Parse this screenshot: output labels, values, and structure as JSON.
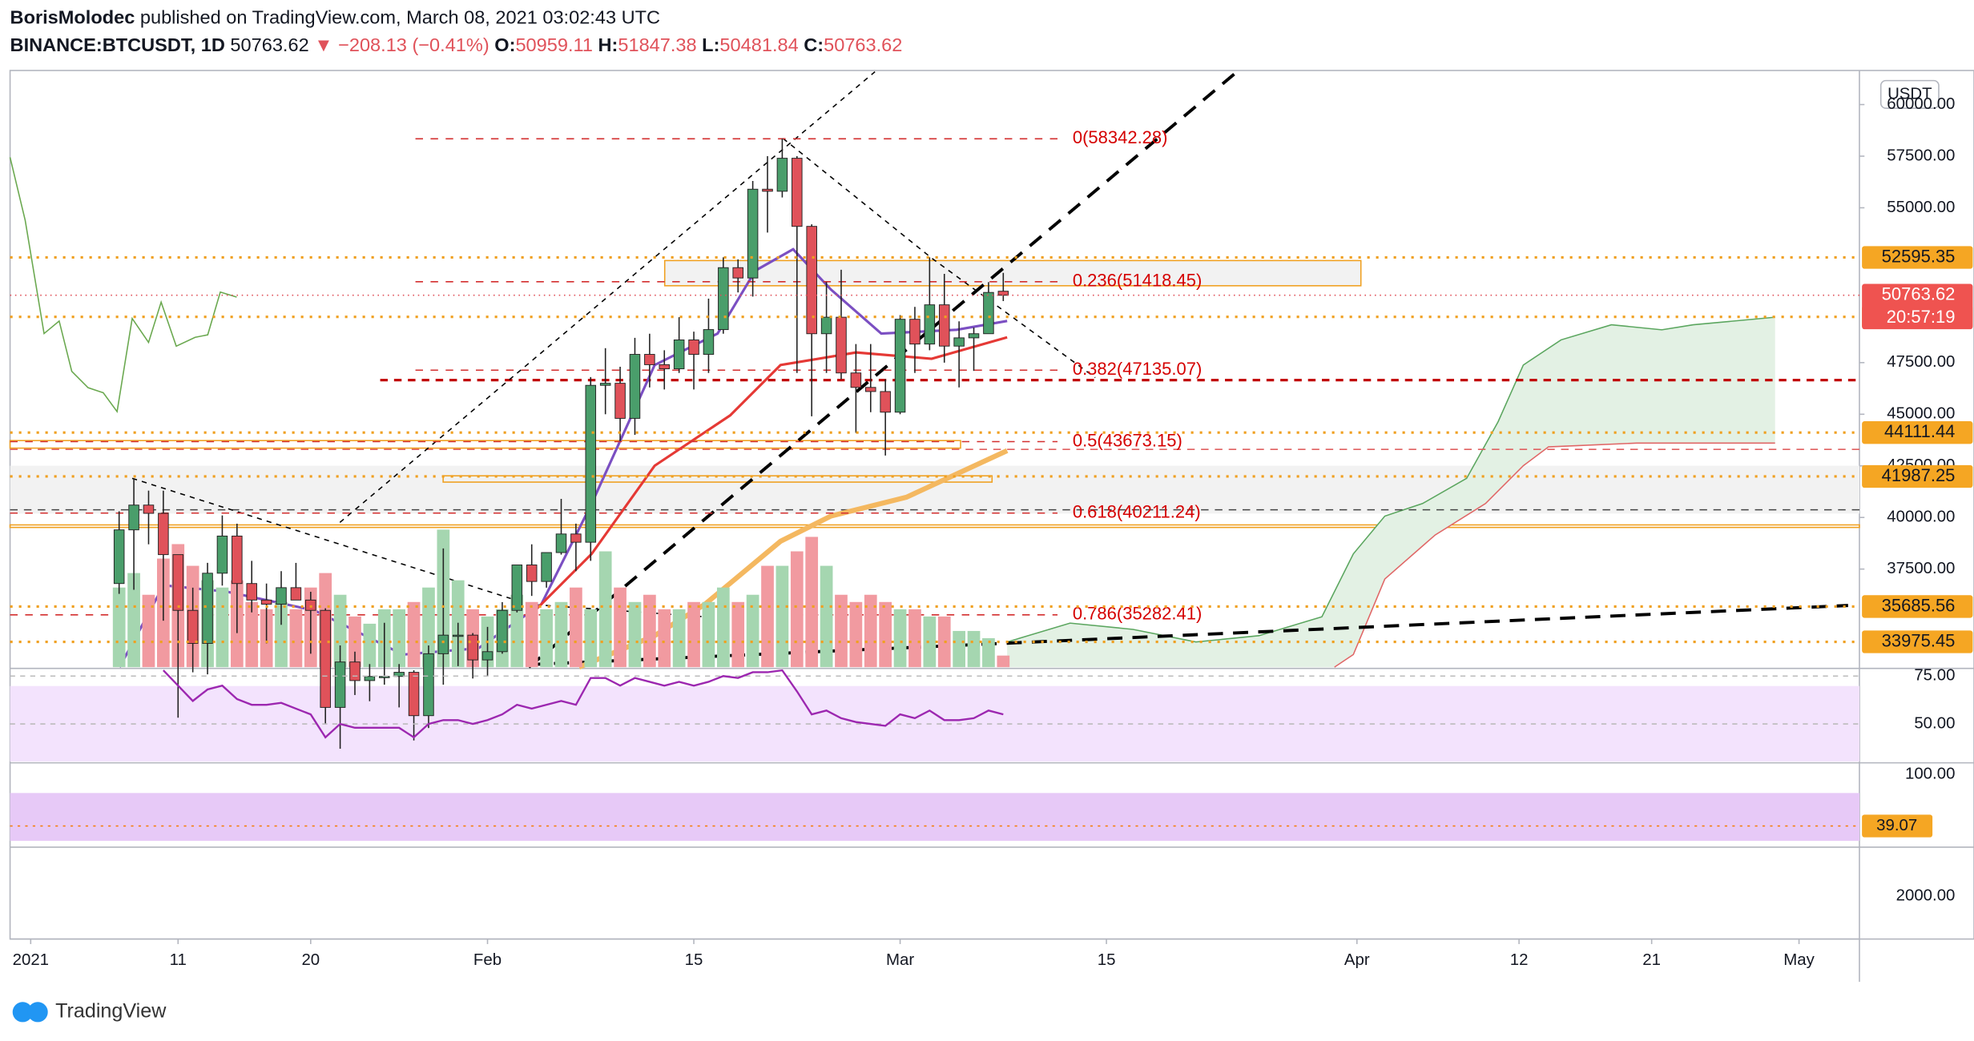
{
  "header": {
    "author": "BorisMolodec",
    "published": "published on TradingView.com, March 08, 2021 03:02:43 UTC",
    "symbol": "BINANCE:BTCUSDT, 1D",
    "last": "50763.62",
    "change": "▼ −208.13 (−0.41%)",
    "ohlc": [
      {
        "label": "O:",
        "value": "50959.11"
      },
      {
        "label": "H:",
        "value": "51847.38"
      },
      {
        "label": "L:",
        "value": "50481.84"
      },
      {
        "label": "C:",
        "value": "50763.62"
      }
    ]
  },
  "currency": "USDT",
  "countdown": "20:57:19",
  "footer": "TradingView",
  "chart_data": {
    "type": "candlestick",
    "up_color": "#4a9e6b",
    "down_color": "#e0525a",
    "xlim": [
      -0.4,
      125.1
    ],
    "xticks": [
      {
        "value": 1,
        "label": "2021"
      },
      {
        "value": 11,
        "label": "11"
      },
      {
        "value": 20,
        "label": "20"
      },
      {
        "value": 32,
        "label": "Feb"
      },
      {
        "value": 46,
        "label": "15"
      },
      {
        "value": 60,
        "label": "Mar"
      },
      {
        "value": 74,
        "label": "15"
      },
      {
        "value": 91,
        "label": "Apr"
      },
      {
        "value": 102,
        "label": "12"
      },
      {
        "value": 111,
        "label": "21"
      },
      {
        "value": 121,
        "label": "May"
      }
    ],
    "ylim": [
      32750,
      61650
    ],
    "yticks": [
      {
        "value": 60000,
        "label": "60000.00"
      },
      {
        "value": 57500,
        "label": "57500.00"
      },
      {
        "value": 55000,
        "label": "55000.00"
      },
      {
        "value": 47500,
        "label": "47500.00"
      },
      {
        "value": 45000,
        "label": "45000.00"
      },
      {
        "value": 42500,
        "label": "42500.00"
      },
      {
        "value": 40000,
        "label": "40000.00"
      },
      {
        "value": 37500,
        "label": "37500.00"
      }
    ],
    "x": [
      7,
      8,
      9,
      10,
      11,
      12,
      13,
      14,
      15,
      16,
      17,
      18,
      19,
      20,
      21,
      22,
      23,
      24,
      25,
      26,
      27,
      28,
      29,
      30,
      31,
      32,
      33,
      34,
      35,
      36,
      37,
      38,
      39,
      40,
      41,
      42,
      43,
      44,
      45,
      46,
      47,
      48,
      49,
      50,
      51,
      52,
      53,
      54,
      55,
      56,
      57,
      58,
      59,
      60,
      61,
      62,
      63,
      64,
      65,
      66,
      67
    ],
    "open": [
      36800,
      39400,
      40600,
      40200,
      38200,
      35500,
      33900,
      37300,
      39100,
      36800,
      36000,
      35800,
      36600,
      36000,
      35500,
      30800,
      33000,
      32100,
      32300,
      32300,
      32500,
      30400,
      33400,
      34300,
      34300,
      33100,
      33500,
      35500,
      37700,
      36900,
      38300,
      39200,
      38800,
      46400,
      46500,
      44800,
      47900,
      47400,
      47200,
      48600,
      47900,
      49100,
      52100,
      51600,
      55900,
      55800,
      57400,
      54100,
      48900,
      49700,
      47000,
      46300,
      46100,
      45100,
      49600,
      48400,
      50300,
      48300,
      48700,
      48900,
      50959.11
    ],
    "high": [
      40300,
      41900,
      41300,
      41300,
      38200,
      36600,
      37800,
      40100,
      39700,
      37900,
      36800,
      37400,
      37800,
      36400,
      35600,
      33800,
      33500,
      32900,
      34900,
      32900,
      32600,
      33800,
      38500,
      34900,
      34400,
      34700,
      35900,
      37700,
      38700,
      38300,
      40900,
      39700,
      46800,
      48200,
      47300,
      48700,
      48900,
      48100,
      49700,
      49000,
      50600,
      52600,
      52500,
      56300,
      57500,
      58350,
      57500,
      54200,
      51400,
      52000,
      48400,
      48400,
      46700,
      49800,
      50200,
      52600,
      51800,
      49500,
      49200,
      51400,
      51847.38
    ],
    "low": [
      36300,
      36500,
      38700,
      35000,
      30300,
      32500,
      32400,
      36700,
      34400,
      35400,
      33900,
      34800,
      36000,
      33400,
      30000,
      28800,
      31400,
      31100,
      31900,
      30800,
      29200,
      29800,
      31900,
      32800,
      32200,
      32300,
      33400,
      35400,
      36200,
      36600,
      38200,
      37400,
      37900,
      45000,
      43700,
      44000,
      46300,
      46200,
      47000,
      46200,
      47000,
      48900,
      50900,
      50700,
      53800,
      55500,
      47000,
      44900,
      47000,
      46700,
      44100,
      45100,
      43000,
      45000,
      47000,
      48100,
      47500,
      46300,
      47100,
      48900,
      50481.84
    ],
    "close": [
      39400,
      40600,
      40200,
      38200,
      35500,
      33900,
      37300,
      39100,
      36800,
      36000,
      35800,
      36600,
      36000,
      35500,
      30800,
      33000,
      32100,
      32300,
      32300,
      32500,
      30400,
      33400,
      34300,
      34300,
      33100,
      33500,
      35500,
      37700,
      36900,
      38300,
      39200,
      38800,
      46400,
      46500,
      44800,
      47900,
      47400,
      47200,
      48600,
      47900,
      49100,
      52100,
      51600,
      55900,
      55800,
      57400,
      54100,
      48900,
      49700,
      47000,
      46300,
      46100,
      45100,
      49600,
      48400,
      50300,
      48300,
      48700,
      48900,
      50900,
      50763.62
    ],
    "volume": [
      55,
      65,
      50,
      75,
      85,
      70,
      60,
      55,
      60,
      45,
      40,
      45,
      40,
      55,
      65,
      50,
      35,
      30,
      40,
      40,
      45,
      55,
      95,
      60,
      40,
      35,
      40,
      50,
      45,
      40,
      45,
      55,
      40,
      80,
      55,
      45,
      50,
      40,
      40,
      45,
      45,
      55,
      45,
      50,
      70,
      70,
      80,
      90,
      70,
      50,
      45,
      50,
      45,
      40,
      40,
      35,
      35,
      25,
      25,
      20,
      8
    ],
    "last_price": 50763.62,
    "levels": [
      52595.35,
      49717.72,
      44111.44,
      41987.25,
      35685.56,
      33975.45
    ],
    "fib": [
      {
        "value": 58342.28,
        "label": "0(58342.28)"
      },
      {
        "value": 51418.45,
        "label": "0.236(51418.45)"
      },
      {
        "value": 47135.07,
        "label": "0.382(47135.07)"
      },
      {
        "value": 43673.15,
        "label": "0.5(43673.15)"
      },
      {
        "value": 40211.24,
        "label": "0.618(40211.24)"
      },
      {
        "value": 35282.41,
        "label": "0.786(35282.41)"
      }
    ],
    "rsi": {
      "color": "#9c27b0",
      "ylim": [
        29.7,
        79
      ],
      "yticks": [
        {
          "value": 75,
          "label": "75.00"
        },
        {
          "value": 50,
          "label": "50.00"
        }
      ],
      "values": [
        null,
        null,
        null,
        78,
        70,
        62,
        68,
        70,
        63,
        60,
        60,
        61,
        58,
        55,
        43,
        50,
        48,
        48,
        48,
        48,
        43,
        50,
        52,
        52,
        50,
        52,
        55,
        60,
        58,
        60,
        62,
        60,
        74,
        74,
        70,
        74,
        72,
        70,
        72,
        70,
        72,
        75,
        74,
        77,
        77,
        78,
        67,
        55,
        57,
        53,
        51,
        50,
        49,
        55,
        53,
        57,
        52,
        52,
        53,
        57,
        55
      ]
    },
    "stoch": {
      "ylim": [
        14,
        114
      ],
      "yticks": [
        {
          "value": 100,
          "label": "100.00"
        }
      ],
      "last": {
        "value": 39.07,
        "label": "39.07"
      }
    },
    "hist": {
      "ylim": [
        0,
        4300
      ],
      "yticks": [
        {
          "value": 2000,
          "label": "2000.00"
        }
      ]
    }
  }
}
